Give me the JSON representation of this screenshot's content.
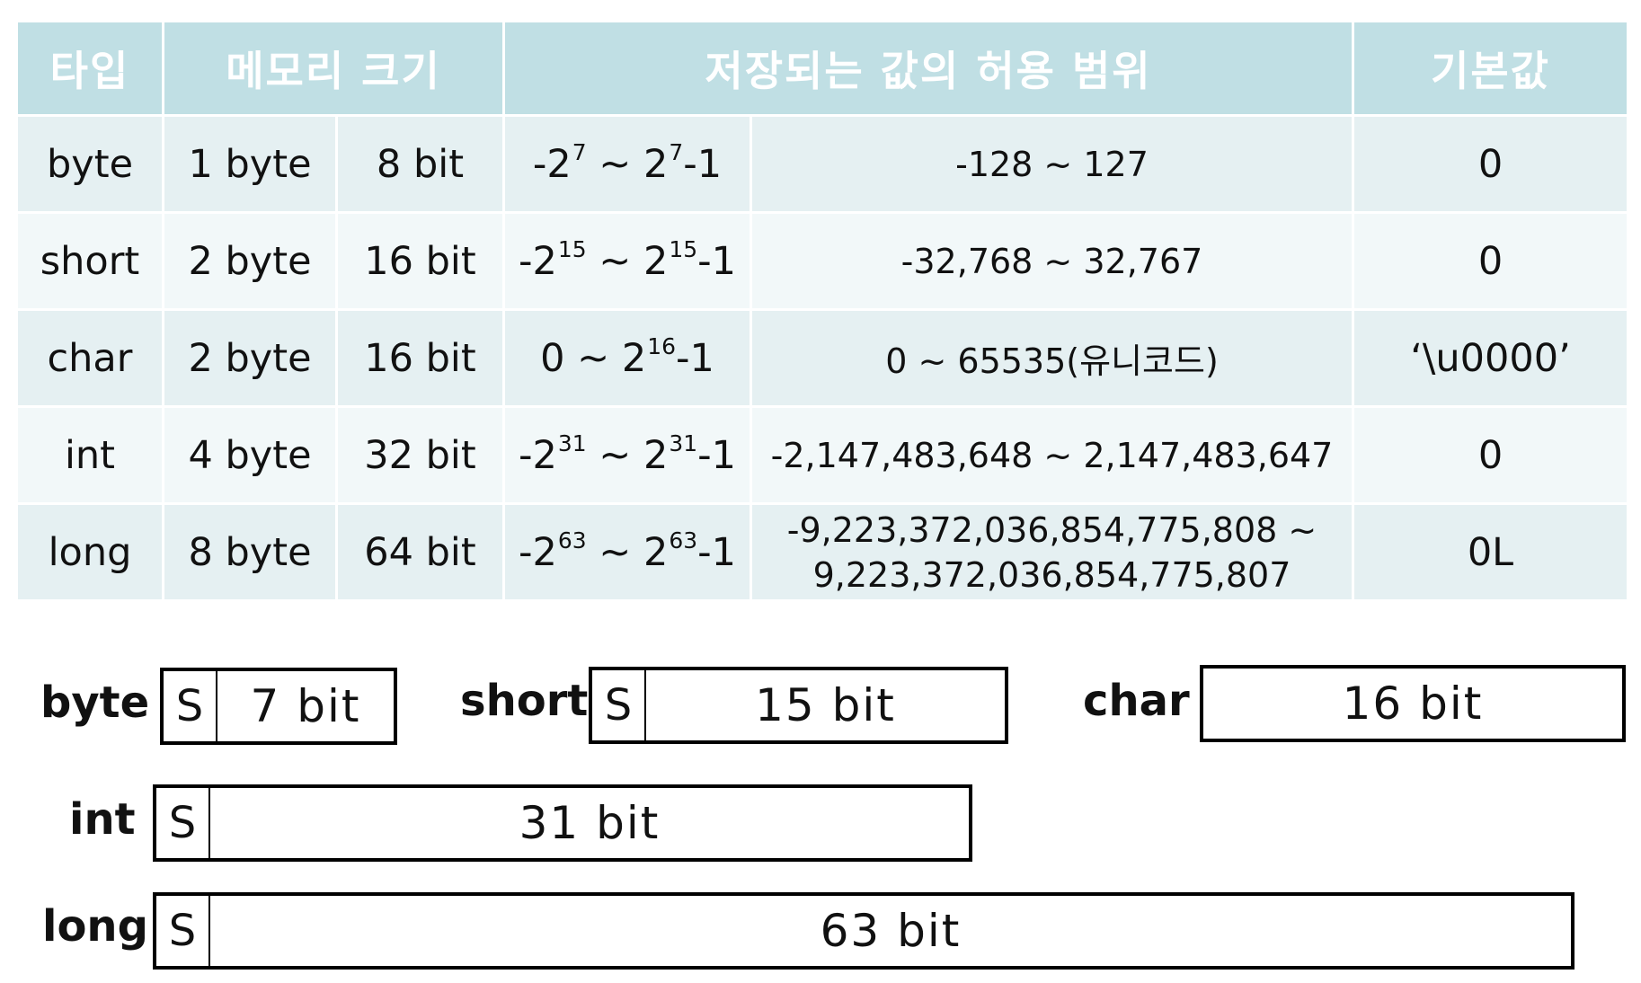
{
  "table": {
    "headers": {
      "type": "타입",
      "memory_size": "메모리 크기",
      "range": "저장되는 값의 허용 범위",
      "default": "기본값"
    },
    "rows": [
      {
        "type": "byte",
        "bytes": "1 byte",
        "bits": "8 bit",
        "range_base": "-2",
        "range_exp1": "7",
        "range_mid": " ~ 2",
        "range_exp2": "7",
        "range_end": "-1",
        "range_value": "-128 ~ 127",
        "range_value_line2": "",
        "default": "0"
      },
      {
        "type": "short",
        "bytes": "2 byte",
        "bits": "16 bit",
        "range_base": "-2",
        "range_exp1": "15",
        "range_mid": " ~ 2",
        "range_exp2": "15",
        "range_end": "-1",
        "range_value": "-32,768 ~ 32,767",
        "range_value_line2": "",
        "default": "0"
      },
      {
        "type": "char",
        "bytes": "2 byte",
        "bits": "16 bit",
        "range_base": "0 ~ 2",
        "range_exp1": "16",
        "range_mid": "-1",
        "range_exp2": "",
        "range_end": "",
        "range_value": "0 ~ 65535(유니코드)",
        "range_value_line2": "",
        "default": "‘\\u0000’"
      },
      {
        "type": "int",
        "bytes": "4 byte",
        "bits": "32 bit",
        "range_base": "-2",
        "range_exp1": "31",
        "range_mid": " ~ 2",
        "range_exp2": "31",
        "range_end": "-1",
        "range_value": "-2,147,483,648 ~ 2,147,483,647",
        "range_value_line2": "",
        "default": "0"
      },
      {
        "type": "long",
        "bytes": "8 byte",
        "bits": "64 bit",
        "range_base": "-2",
        "range_exp1": "63",
        "range_mid": " ~ 2",
        "range_exp2": "63",
        "range_end": "-1",
        "range_value": "-9,223,372,036,854,775,808 ~",
        "range_value_line2": "9,223,372,036,854,775,807",
        "default": "0L"
      }
    ]
  },
  "diagrams": {
    "byte": {
      "label": "byte",
      "sign": "S",
      "bits": "7 bit"
    },
    "short": {
      "label": "short",
      "sign": "S",
      "bits": "15 bit"
    },
    "char": {
      "label": "char",
      "bits": "16 bit"
    },
    "int": {
      "label": "int",
      "sign": "S",
      "bits": "31 bit"
    },
    "long": {
      "label": "long",
      "sign": "S",
      "bits": "63 bit"
    }
  },
  "colors": {
    "header_bg": "#c0dfe4",
    "row_bg_odd": "#e5f0f2",
    "row_bg_even": "#f2f8f9"
  }
}
